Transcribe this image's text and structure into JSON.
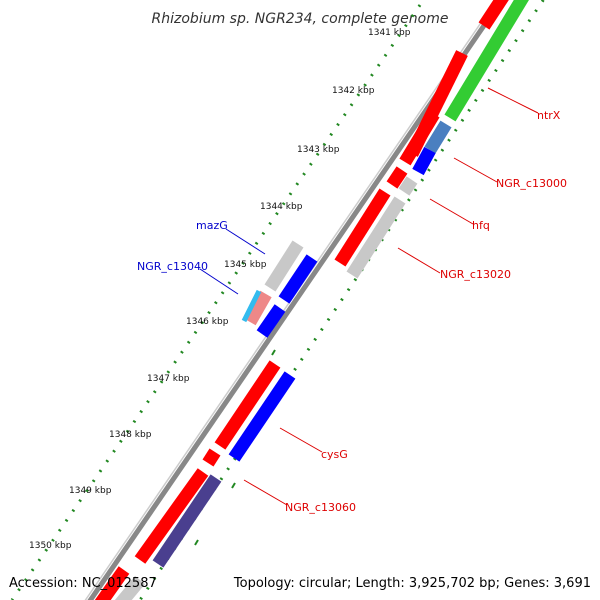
{
  "title": "Rhizobium sp. NGR234, complete genome",
  "footer": {
    "accession": "Accession: NC_012587",
    "stats": "Topology: circular; Length: 3,925,702 bp; Genes: 3,691"
  },
  "ticks": [
    "1341 kbp",
    "1342 kbp",
    "1343 kbp",
    "1344 kbp",
    "1345 kbp",
    "1346 kbp",
    "1347 kbp",
    "1348 kbp",
    "1349 kbp",
    "1350 kbp"
  ],
  "labels": {
    "ntrX": "ntrX",
    "ngr_c13000": "NGR_c13000",
    "hfq": "hfq",
    "ngr_c13020": "NGR_c13020",
    "mazG": "mazG",
    "ngr_c13040": "NGR_c13040",
    "cysG": "cysG",
    "ngr_c13060": "NGR_c13060"
  },
  "colors": {
    "cds_red": "#ff0000",
    "cds_blue": "#0000ff",
    "cds_green": "#33cc33",
    "cds_gray": "#c8c8c8",
    "cds_navy": "#4a3f8f",
    "cds_cyan": "#33bbee",
    "cds_pink": "#ee8888",
    "cds_steel": "#4a7fc0",
    "backbone": "#888888",
    "tick_dots": "#228822",
    "label_red": "#dd0000",
    "label_blue": "#0000cc"
  }
}
